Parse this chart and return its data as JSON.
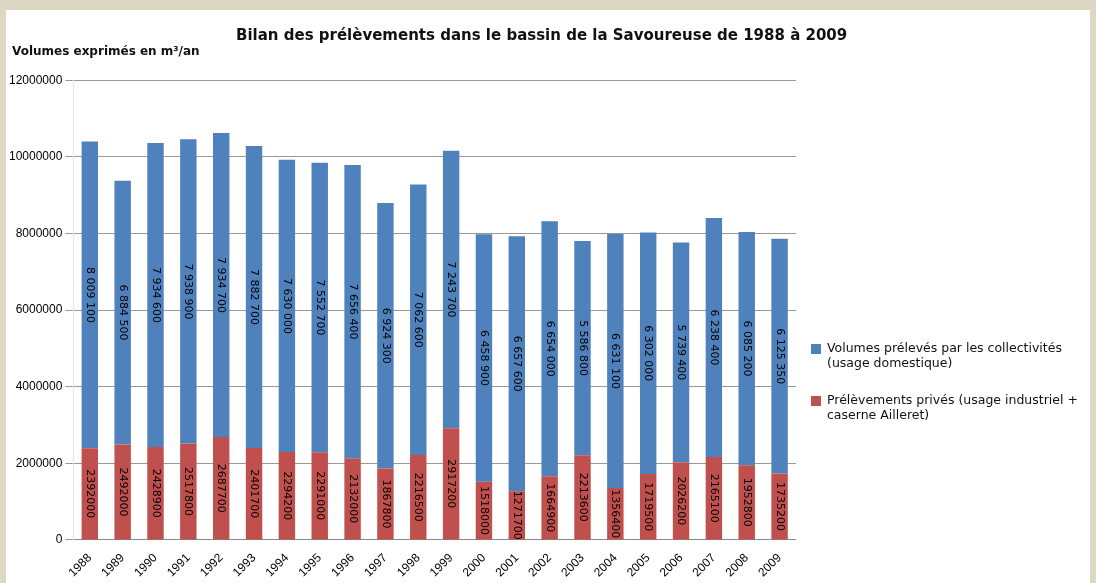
{
  "chart_data": {
    "type": "bar",
    "title": "Bilan des prélèvements dans le bassin de la Savoureuse de 1988 à 2009",
    "ylabel": "Volumes exprimés en m³/an",
    "categories": [
      "1988",
      "1989",
      "1990",
      "1991",
      "1992",
      "1993",
      "1994",
      "1995",
      "1996",
      "1997",
      "1998",
      "1999",
      "2000",
      "2001",
      "2002",
      "2003",
      "2004",
      "2005",
      "2006",
      "2007",
      "2008",
      "2009"
    ],
    "stacked": true,
    "ylim": [
      0,
      12000000
    ],
    "yticks": [
      0,
      2000000,
      4000000,
      6000000,
      8000000,
      10000000,
      12000000
    ],
    "grid": "y",
    "legend": "right",
    "series": [
      {
        "name": "Prélèvements privés (usage industriel + caserne Ailleret)",
        "color": "#c0504d",
        "values": [
          2392000,
          2492000,
          2428900,
          2517800,
          2687700,
          2401700,
          2294200,
          2291000,
          2132000,
          1867800,
          2216500,
          2917200,
          1518000,
          1271700,
          1664900,
          2213600,
          1356400,
          1719500,
          2026200,
          2165100,
          1952800,
          1735200
        ],
        "value_labels": [
          "2392000",
          "2492000",
          "2428900",
          "2517800",
          "2687700",
          "2401700",
          "2294200",
          "2291000",
          "2132000",
          "1867800",
          "2216500",
          "2917200",
          "1518000",
          "1271700",
          "1664900",
          "2213600",
          "1356400",
          "1719500",
          "2026200",
          "2165100",
          "1952800",
          "1735200"
        ]
      },
      {
        "name": "Volumes prélevés par les collectivités (usage domestique)",
        "color": "#4f81bd",
        "values": [
          8009100,
          6884500,
          7934600,
          7938900,
          7934700,
          7882700,
          7630000,
          7552700,
          7656400,
          6924300,
          7062600,
          7243700,
          6458900,
          6657600,
          6654000,
          5586800,
          6631100,
          6302000,
          5739400,
          6238400,
          6085200,
          6125350
        ],
        "value_labels": [
          "8 009 100",
          "6 884 500",
          "7 934 600",
          "7 938 900",
          "7 934 700",
          "7 882 700",
          "7 630 000",
          "7 552 700",
          "7 656 400",
          "6 924 300",
          "7 062 600",
          "7 243 700",
          "6 458 900",
          "6 657 600",
          "6 654 000",
          "5 586 800",
          "6 631 100",
          "6 302 000",
          "5 739 400",
          "6 238 400",
          "6 085 200",
          "6 125 350"
        ]
      }
    ]
  }
}
